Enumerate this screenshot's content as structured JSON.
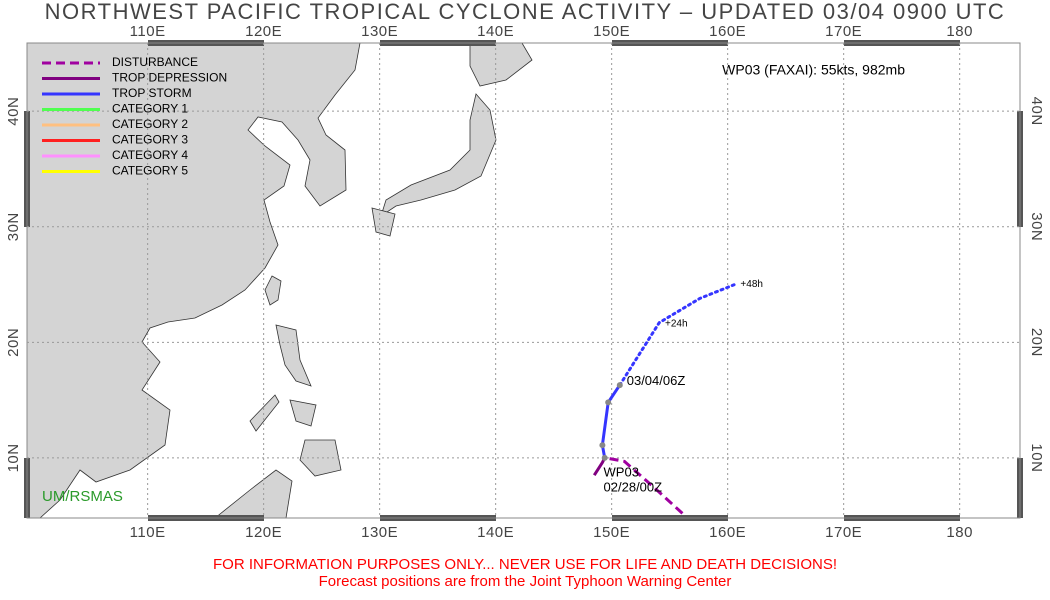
{
  "header": {
    "title": "NORTHWEST PACIFIC TROPICAL CYCLONE ACTIVITY – UPDATED 03/04 0900 UTC"
  },
  "map": {
    "xlim": [
      99.6,
      185.2
    ],
    "ylim": [
      4.8,
      45.9
    ],
    "xticks": [
      {
        "value": 110,
        "label": "110E"
      },
      {
        "value": 120,
        "label": "120E"
      },
      {
        "value": 130,
        "label": "130E"
      },
      {
        "value": 140,
        "label": "140E"
      },
      {
        "value": 150,
        "label": "150E"
      },
      {
        "value": 160,
        "label": "160E"
      },
      {
        "value": 170,
        "label": "170E"
      },
      180
    ],
    "yticks": [
      {
        "value": 10,
        "label": "10N"
      },
      {
        "value": 20,
        "label": "20N"
      },
      {
        "value": 30,
        "label": "30N"
      },
      {
        "value": 40,
        "label": "40N"
      }
    ],
    "grid": true,
    "series": [
      {
        "name": "DISTURBANCE",
        "color": "#a000a0",
        "style": "dashed",
        "lon": [
          156.1,
          153.7,
          151.1,
          149.5
        ],
        "lat": [
          5.2,
          7.4,
          9.7,
          10.0
        ]
      },
      {
        "name": "TROP DEPRESSION",
        "color": "#800080",
        "style": "solid",
        "lon": [
          148.5,
          149.2,
          149.4
        ],
        "lat": [
          8.5,
          9.6,
          10.0
        ]
      },
      {
        "name": "TROP STORM",
        "color": "#3535ff",
        "style": "solid",
        "lon": [
          149.4,
          149.2,
          149.7,
          150.7
        ],
        "lat": [
          10.0,
          11.1,
          14.8,
          16.3
        ]
      },
      {
        "name": "CATEGORY 1",
        "color": "#50ff50",
        "style": "solid",
        "lon": [],
        "lat": []
      },
      {
        "name": "CATEGORY 2",
        "color": "#ffc080",
        "style": "solid",
        "lon": [],
        "lat": []
      },
      {
        "name": "CATEGORY 3",
        "color": "#ff2020",
        "style": "solid",
        "lon": [],
        "lat": []
      },
      {
        "name": "CATEGORY 4",
        "color": "#ff90ff",
        "style": "solid",
        "lon": [],
        "lat": []
      },
      {
        "name": "CATEGORY 5",
        "color": "#ffff00",
        "style": "solid",
        "lon": [],
        "lat": []
      }
    ],
    "forecast": {
      "color": "#3535ff",
      "lon": [
        150.7,
        154.1,
        157.6,
        160.6
      ],
      "lat": [
        16.3,
        21.7,
        23.8,
        25.0
      ]
    },
    "labels": [
      {
        "text": "+48h",
        "lon": 161.1,
        "lat": 25.0
      },
      {
        "text": "+24h",
        "lon": 154.6,
        "lat": 21.6
      },
      {
        "text": "03/04/06Z",
        "lon": 151.3,
        "lat": 16.6
      },
      {
        "text": "WP03",
        "lon": 149.3,
        "lat": 8.7
      },
      {
        "text": "02/28/00Z",
        "lon": 149.3,
        "lat": 7.4
      }
    ],
    "storm_info": "WP03 (FAXAI): 55kts, 982mb",
    "credit": "UM/RSMAS"
  },
  "footer": [
    "FOR INFORMATION PURPOSES ONLY... NEVER USE FOR LIFE AND DEATH DECISIONS!",
    "Forecast positions are from the Joint Typhoon Warning Center"
  ]
}
